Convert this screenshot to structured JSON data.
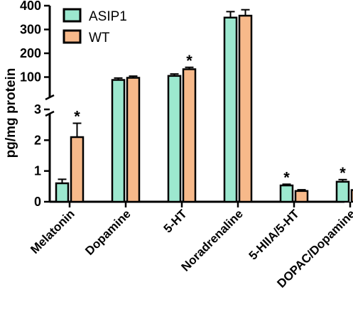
{
  "chart_data": {
    "type": "bar",
    "title": "",
    "xlabel": "",
    "ylabel": "pg/mg protein",
    "axis_break": {
      "lower_range": [
        0,
        3
      ],
      "upper_range": [
        0,
        400
      ]
    },
    "lower_ticks": [
      "0",
      "1",
      "2",
      "3"
    ],
    "upper_ticks": [
      "100",
      "200",
      "300",
      "400"
    ],
    "categories": [
      "Melatonin",
      "Dopamine",
      "5-HT",
      "Noradrenaline",
      "5-HIIA/5-HT",
      "DOPAC/Dopamine"
    ],
    "segment": [
      "lower",
      "upper",
      "upper",
      "upper",
      "lower",
      "lower"
    ],
    "series": [
      {
        "name": "ASIP1",
        "color": "#9ce8cf",
        "values": [
          0.6,
          88,
          105,
          350,
          0.53,
          0.65
        ],
        "errors": [
          0.13,
          8,
          8,
          25,
          0.04,
          0.07
        ],
        "significance": [
          "",
          "",
          "",
          "",
          "*",
          "*"
        ]
      },
      {
        "name": "WT",
        "color": "#f7b98a",
        "values": [
          2.1,
          97,
          133,
          358,
          0.35,
          0.38
        ],
        "errors": [
          0.45,
          7,
          8,
          25,
          0.04,
          0.05
        ],
        "significance": [
          "*",
          "",
          "*",
          "",
          "",
          ""
        ]
      }
    ],
    "legend_position": "top-left",
    "grid": false
  }
}
